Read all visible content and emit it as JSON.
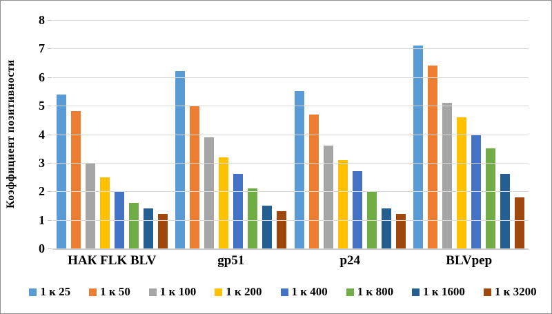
{
  "chart_data": {
    "type": "bar",
    "title": "",
    "xlabel": "",
    "ylabel": "Коэффициент позитивности",
    "ylim": [
      0,
      8
    ],
    "yticks": [
      0,
      1,
      2,
      3,
      4,
      5,
      6,
      7,
      8
    ],
    "grid": true,
    "legend_position": "bottom",
    "categories": [
      "НАК FLK BLV",
      "gp51",
      "p24",
      "BLVpep"
    ],
    "series": [
      {
        "name": "1 к 25",
        "color": "#5B9BD5",
        "values": [
          5.4,
          6.2,
          5.5,
          7.1
        ]
      },
      {
        "name": "1 к 50",
        "color": "#ED7D31",
        "values": [
          4.8,
          5.0,
          4.7,
          6.4
        ]
      },
      {
        "name": "1 к 100",
        "color": "#A5A5A5",
        "values": [
          3.0,
          3.9,
          3.6,
          5.1
        ]
      },
      {
        "name": "1 к 200",
        "color": "#FFC000",
        "values": [
          2.5,
          3.2,
          3.1,
          4.6
        ]
      },
      {
        "name": "1 к 400",
        "color": "#4472C4",
        "values": [
          2.0,
          2.6,
          2.7,
          4.0
        ]
      },
      {
        "name": "1 к 800",
        "color": "#70AD47",
        "values": [
          1.6,
          2.1,
          2.0,
          3.5
        ]
      },
      {
        "name": "1 к 1600",
        "color": "#255E91",
        "values": [
          1.4,
          1.5,
          1.4,
          2.6
        ]
      },
      {
        "name": "1 к 3200",
        "color": "#9E480E",
        "values": [
          1.2,
          1.3,
          1.2,
          1.8
        ]
      }
    ],
    "colors": {
      "gridline": "#D9D9D9",
      "axis_line": "#CFCFCF",
      "text": "#000000",
      "background": "#FFFFFF"
    }
  }
}
